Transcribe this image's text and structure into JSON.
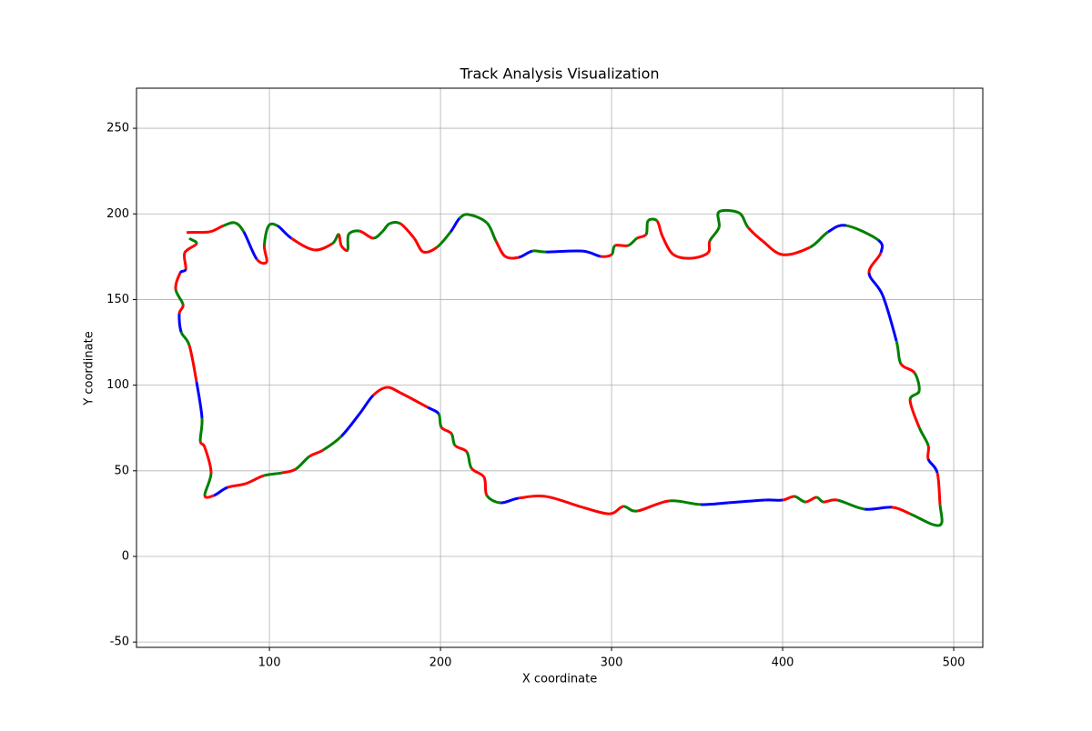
{
  "chart_data": {
    "type": "track",
    "title": "Track Analysis Visualization",
    "x_label": "X coordinate",
    "y_label": "Y coordinate",
    "xlim": [
      22.3,
      517
    ],
    "ylim": [
      -53.1,
      273.4
    ],
    "xticks": [
      100,
      200,
      300,
      400,
      500
    ],
    "yticks": [
      -50,
      0,
      50,
      100,
      150,
      200,
      250
    ],
    "grid": true,
    "closed": true,
    "x": [
      51.6,
      64.9,
      72.9,
      79.8,
      85,
      92.6,
      98.4,
      97,
      99.5,
      104.8,
      112.8,
      126,
      136.7,
      140.4,
      142,
      145.7,
      146.3,
      152.7,
      160.6,
      165.9,
      170.2,
      176.6,
      184.6,
      189.9,
      197.9,
      205.9,
      211.2,
      216.5,
      227.1,
      232.4,
      237.8,
      245.7,
      253.7,
      261.7,
      283,
      293.6,
      300,
      302.1,
      309.6,
      314.9,
      320.2,
      321.3,
      326.6,
      329.8,
      336.2,
      346.8,
      356.4,
      357.4,
      362.8,
      362.8,
      374.5,
      379.8,
      388.3,
      400,
      416,
      426.6,
      437.2,
      455.9,
      457.4,
      450.5,
      458.5,
      466.5,
      469.1,
      477.1,
      479.8,
      474.5,
      479.8,
      485.1,
      485.1,
      490.4,
      492,
      493,
      487.8,
      474.5,
      463.8,
      447.9,
      431.9,
      423.9,
      419.7,
      413.3,
      406.9,
      400,
      389.4,
      368.1,
      352.1,
      333.5,
      314.9,
      306.9,
      298.9,
      283,
      261.7,
      245.7,
      235.1,
      227.1,
      225.5,
      218.1,
      215.4,
      208.5,
      206.4,
      200.5,
      198.9,
      192.6,
      176.6,
      168.6,
      160.6,
      152.7,
      142,
      131.4,
      123.4,
      115.4,
      107.4,
      96.8,
      86.2,
      75.5,
      67.6,
      62.2,
      65.9,
      62.2,
      59.6,
      60.6,
      57.4,
      53.2,
      48.4,
      47.3,
      49.5,
      45.2,
      47.9,
      51.1,
      50.5,
      57.4,
      53.2
    ],
    "y": [
      189,
      189.5,
      193,
      194.8,
      189.5,
      173.6,
      172,
      181.5,
      193,
      193,
      185.8,
      179,
      182.6,
      188,
      181.5,
      178.9,
      188,
      190,
      185.8,
      189.5,
      194.3,
      194.3,
      185.8,
      177.8,
      180.5,
      189.5,
      197.5,
      199.6,
      194.8,
      184.2,
      175.2,
      174.6,
      178.3,
      177.8,
      178.3,
      175.2,
      176.2,
      181.5,
      181.5,
      185.8,
      188,
      195.9,
      195.9,
      186.8,
      176.2,
      174.1,
      177.3,
      184.2,
      192.1,
      201.2,
      200.6,
      192.1,
      184.2,
      176.2,
      180.5,
      189.5,
      193.2,
      184.7,
      177.3,
      165.6,
      152.4,
      125.8,
      112.5,
      107.2,
      96.6,
      91.3,
      75.4,
      64.8,
      56.8,
      48.8,
      30.3,
      19.6,
      18.6,
      24.9,
      28.7,
      27.6,
      32.9,
      31.8,
      34.5,
      31.8,
      35,
      32.9,
      32.9,
      31.3,
      30.3,
      32.4,
      26.5,
      29.2,
      24.9,
      28.7,
      35,
      34,
      31.3,
      35.6,
      46.2,
      51.5,
      61,
      64.8,
      71.7,
      75.4,
      83.3,
      87,
      95.5,
      98.7,
      94,
      83.3,
      70.1,
      62.1,
      58.4,
      51,
      48.8,
      47.2,
      42.5,
      40.3,
      35.6,
      35.6,
      48.8,
      63.7,
      67.4,
      80.7,
      101.9,
      123.1,
      131.1,
      141.7,
      147,
      156,
      165.6,
      167.7,
      177.3,
      182.6,
      185.8
    ],
    "colors": [
      "red",
      "red",
      "green",
      "green",
      "blue",
      "red",
      "red",
      "green",
      "green",
      "blue",
      "red",
      "red",
      "green",
      "red",
      "red",
      "green",
      "green",
      "red",
      "green",
      "green",
      "green",
      "red",
      "red",
      "red",
      "green",
      "blue",
      "green",
      "green",
      "green",
      "red",
      "red",
      "blue",
      "green",
      "blue",
      "blue",
      "red",
      "green",
      "red",
      "green",
      "red",
      "green",
      "green",
      "red",
      "red",
      "red",
      "red",
      "red",
      "green",
      "green",
      "green",
      "green",
      "red",
      "red",
      "red",
      "green",
      "blue",
      "green",
      "blue",
      "red",
      "blue",
      "blue",
      "green",
      "red",
      "green",
      "green",
      "red",
      "green",
      "red",
      "blue",
      "red",
      "green",
      "green",
      "green",
      "red",
      "blue",
      "green",
      "red",
      "green",
      "red",
      "green",
      "red",
      "blue",
      "blue",
      "blue",
      "green",
      "red",
      "green",
      "red",
      "red",
      "red",
      "red",
      "blue",
      "green",
      "red",
      "red",
      "green",
      "red",
      "green",
      "red",
      "green",
      "blue",
      "red",
      "red",
      "red",
      "blue",
      "blue",
      "green",
      "red",
      "green",
      "red",
      "green",
      "red",
      "red",
      "blue",
      "red",
      "green",
      "red",
      "red",
      "green",
      "blue",
      "red",
      "green",
      "blue",
      "red",
      "green",
      "red",
      "blue",
      "red",
      "red",
      "green"
    ]
  }
}
